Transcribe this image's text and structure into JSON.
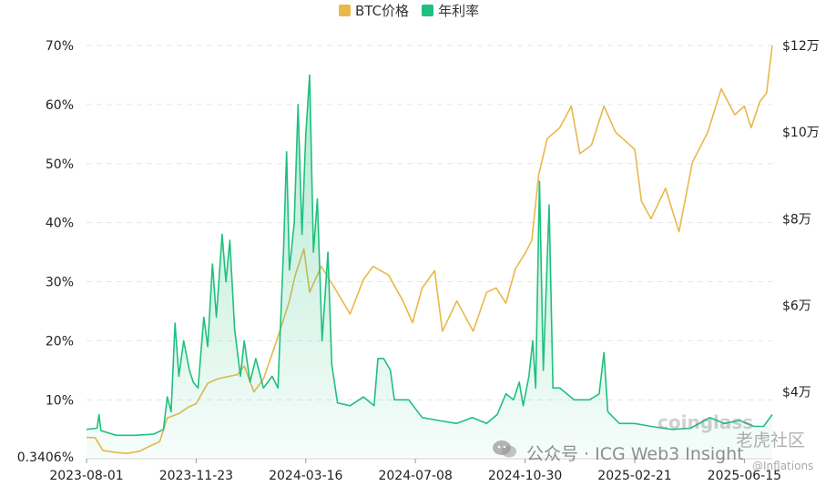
{
  "chart_data": {
    "type": "line",
    "title": "",
    "xlabel": "",
    "ylabel_left": "",
    "ylabel_right": "",
    "legend_position": "top-center",
    "grid": true,
    "x_ticks": [
      "2023-08-01",
      "2023-11-23",
      "2024-03-16",
      "2024-07-08",
      "2024-10-30",
      "2025-02-21",
      "2025-06-15"
    ],
    "x_range": [
      "2023-08-01",
      "2025-07-14"
    ],
    "y_left_ticks": [
      "0.3406%",
      "10%",
      "20%",
      "30%",
      "40%",
      "50%",
      "60%",
      "70%"
    ],
    "y_left_range": [
      0.3406,
      70
    ],
    "y_right_ticks": [
      "$4万",
      "$6万",
      "$8万",
      "$10万",
      "$12万"
    ],
    "y_right_range": [
      25000,
      120000
    ],
    "series": [
      {
        "name": "BTC价格",
        "axis": "right",
        "color": "#e8b84a",
        "fill": false,
        "points": [
          [
            "2023-08-01",
            29500
          ],
          [
            "2023-08-10",
            29400
          ],
          [
            "2023-08-18",
            26500
          ],
          [
            "2023-09-01",
            26000
          ],
          [
            "2023-09-12",
            25800
          ],
          [
            "2023-09-25",
            26300
          ],
          [
            "2023-10-05",
            27400
          ],
          [
            "2023-10-16",
            28500
          ],
          [
            "2023-10-24",
            34000
          ],
          [
            "2023-11-05",
            35000
          ],
          [
            "2023-11-15",
            36500
          ],
          [
            "2023-11-23",
            37300
          ],
          [
            "2023-12-05",
            42000
          ],
          [
            "2023-12-15",
            43000
          ],
          [
            "2023-12-25",
            43500
          ],
          [
            "2024-01-05",
            44000
          ],
          [
            "2024-01-12",
            46000
          ],
          [
            "2024-01-22",
            40000
          ],
          [
            "2024-02-01",
            43000
          ],
          [
            "2024-02-15",
            52000
          ],
          [
            "2024-02-28",
            61000
          ],
          [
            "2024-03-05",
            67000
          ],
          [
            "2024-03-14",
            73000
          ],
          [
            "2024-03-20",
            63000
          ],
          [
            "2024-04-01",
            69000
          ],
          [
            "2024-04-15",
            64000
          ],
          [
            "2024-05-01",
            58000
          ],
          [
            "2024-05-15",
            66000
          ],
          [
            "2024-05-25",
            69000
          ],
          [
            "2024-06-10",
            67000
          ],
          [
            "2024-06-25",
            61000
          ],
          [
            "2024-07-05",
            56000
          ],
          [
            "2024-07-15",
            64000
          ],
          [
            "2024-07-28",
            68000
          ],
          [
            "2024-08-05",
            54000
          ],
          [
            "2024-08-20",
            61000
          ],
          [
            "2024-09-06",
            54000
          ],
          [
            "2024-09-20",
            63000
          ],
          [
            "2024-09-30",
            64000
          ],
          [
            "2024-10-10",
            60500
          ],
          [
            "2024-10-20",
            68500
          ],
          [
            "2024-10-30",
            72000
          ],
          [
            "2024-11-06",
            75000
          ],
          [
            "2024-11-13",
            90000
          ],
          [
            "2024-11-22",
            98500
          ],
          [
            "2024-12-05",
            101000
          ],
          [
            "2024-12-17",
            106000
          ],
          [
            "2024-12-26",
            95000
          ],
          [
            "2025-01-07",
            97000
          ],
          [
            "2025-01-20",
            106000
          ],
          [
            "2025-02-01",
            100000
          ],
          [
            "2025-02-21",
            96000
          ],
          [
            "2025-02-28",
            84000
          ],
          [
            "2025-03-10",
            80000
          ],
          [
            "2025-03-25",
            87000
          ],
          [
            "2025-04-08",
            77000
          ],
          [
            "2025-04-22",
            93000
          ],
          [
            "2025-05-08",
            100000
          ],
          [
            "2025-05-22",
            110000
          ],
          [
            "2025-06-05",
            104000
          ],
          [
            "2025-06-15",
            106000
          ],
          [
            "2025-06-22",
            101000
          ],
          [
            "2025-07-01",
            107000
          ],
          [
            "2025-07-08",
            109000
          ],
          [
            "2025-07-14",
            120000
          ]
        ]
      },
      {
        "name": "年利率",
        "axis": "left",
        "color": "#1fc07f",
        "fill": true,
        "points": [
          [
            "2023-08-01",
            5
          ],
          [
            "2023-08-12",
            5.2
          ],
          [
            "2023-08-14",
            7.5
          ],
          [
            "2023-08-16",
            4.8
          ],
          [
            "2023-09-01",
            4
          ],
          [
            "2023-09-20",
            4
          ],
          [
            "2023-10-10",
            4.2
          ],
          [
            "2023-10-20",
            5
          ],
          [
            "2023-10-24",
            10.5
          ],
          [
            "2023-10-28",
            8
          ],
          [
            "2023-11-01",
            23
          ],
          [
            "2023-11-05",
            14
          ],
          [
            "2023-11-10",
            20
          ],
          [
            "2023-11-16",
            15
          ],
          [
            "2023-11-20",
            13
          ],
          [
            "2023-11-25",
            12
          ],
          [
            "2023-12-01",
            24
          ],
          [
            "2023-12-05",
            19
          ],
          [
            "2023-12-10",
            33
          ],
          [
            "2023-12-14",
            24
          ],
          [
            "2023-12-20",
            38
          ],
          [
            "2023-12-24",
            30
          ],
          [
            "2023-12-28",
            37
          ],
          [
            "2024-01-02",
            22
          ],
          [
            "2024-01-08",
            14
          ],
          [
            "2024-01-12",
            20
          ],
          [
            "2024-01-18",
            13
          ],
          [
            "2024-01-24",
            17
          ],
          [
            "2024-02-01",
            12
          ],
          [
            "2024-02-10",
            14
          ],
          [
            "2024-02-16",
            12
          ],
          [
            "2024-02-22",
            36
          ],
          [
            "2024-02-25",
            52
          ],
          [
            "2024-02-28",
            32
          ],
          [
            "2024-03-04",
            40
          ],
          [
            "2024-03-08",
            60
          ],
          [
            "2024-03-12",
            38
          ],
          [
            "2024-03-16",
            55
          ],
          [
            "2024-03-20",
            65
          ],
          [
            "2024-03-24",
            35
          ],
          [
            "2024-03-28",
            44
          ],
          [
            "2024-04-02",
            20
          ],
          [
            "2024-04-08",
            35
          ],
          [
            "2024-04-12",
            16
          ],
          [
            "2024-04-18",
            9.5
          ],
          [
            "2024-05-01",
            9
          ],
          [
            "2024-05-15",
            10.5
          ],
          [
            "2024-05-26",
            9
          ],
          [
            "2024-05-30",
            17
          ],
          [
            "2024-06-05",
            17
          ],
          [
            "2024-06-12",
            15
          ],
          [
            "2024-06-16",
            10
          ],
          [
            "2024-07-01",
            10
          ],
          [
            "2024-07-15",
            7
          ],
          [
            "2024-08-01",
            6.5
          ],
          [
            "2024-08-20",
            6
          ],
          [
            "2024-09-05",
            7
          ],
          [
            "2024-09-20",
            6
          ],
          [
            "2024-10-01",
            7.5
          ],
          [
            "2024-10-10",
            11
          ],
          [
            "2024-10-18",
            10
          ],
          [
            "2024-10-24",
            13
          ],
          [
            "2024-10-28",
            9
          ],
          [
            "2024-11-03",
            14
          ],
          [
            "2024-11-07",
            20
          ],
          [
            "2024-11-10",
            12
          ],
          [
            "2024-11-14",
            47
          ],
          [
            "2024-11-18",
            15
          ],
          [
            "2024-11-24",
            43
          ],
          [
            "2024-11-28",
            12
          ],
          [
            "2024-12-05",
            12
          ],
          [
            "2024-12-20",
            10
          ],
          [
            "2025-01-05",
            10
          ],
          [
            "2025-01-15",
            11
          ],
          [
            "2025-01-20",
            18
          ],
          [
            "2025-01-24",
            8
          ],
          [
            "2025-02-05",
            6
          ],
          [
            "2025-02-21",
            6
          ],
          [
            "2025-03-10",
            5.5
          ],
          [
            "2025-04-01",
            5
          ],
          [
            "2025-04-20",
            5.2
          ],
          [
            "2025-05-10",
            7
          ],
          [
            "2025-05-25",
            6
          ],
          [
            "2025-06-10",
            6.5
          ],
          [
            "2025-06-25",
            5.5
          ],
          [
            "2025-07-05",
            5.5
          ],
          [
            "2025-07-14",
            7.5
          ]
        ]
      }
    ]
  },
  "watermarks": {
    "wechat": "公众号 · ICG Web3 Insight",
    "coinglass": "coinglass",
    "community": "老虎社区",
    "handle": "@Inflations"
  }
}
